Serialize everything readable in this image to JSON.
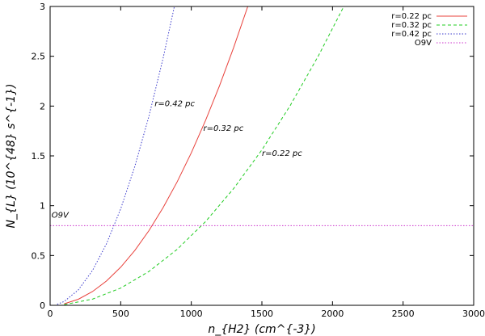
{
  "chart_data": {
    "type": "line",
    "xlabel": "n_{H2} (cm^{-3})",
    "ylabel": "N_{L} (10^{48} s^{-1})",
    "xlim": [
      0,
      3000
    ],
    "ylim": [
      0,
      3
    ],
    "x_ticks": [
      0,
      500,
      1000,
      1500,
      2000,
      2500,
      3000
    ],
    "y_ticks": [
      0,
      0.5,
      1,
      1.5,
      2,
      2.5,
      3
    ],
    "x_tick_labels": [
      "0",
      "500",
      "1000",
      "1500",
      "2000",
      "2500",
      "3000"
    ],
    "y_tick_labels": [
      "0",
      "0.5",
      "1",
      "1.5",
      "2",
      "2.5",
      "3"
    ],
    "grid": false,
    "legend_position": "top-right",
    "series": [
      {
        "name": "r=0.22 pc",
        "color": "#e8413b",
        "dash": "solid",
        "x": [
          100,
          200,
          300,
          400,
          500,
          600,
          700,
          800,
          900,
          1000,
          1100,
          1200,
          1300,
          1400
        ],
        "y": [
          0.015,
          0.061,
          0.138,
          0.245,
          0.383,
          0.551,
          0.75,
          0.98,
          1.24,
          1.531,
          1.853,
          2.205,
          2.588,
          3.0
        ]
      },
      {
        "name": "r=0.32 pc",
        "color": "#22cc22",
        "dash": "dashed",
        "x": [
          100,
          300,
          500,
          700,
          900,
          1100,
          1300,
          1500,
          1700,
          1900,
          2080
        ],
        "y": [
          0.007,
          0.062,
          0.173,
          0.34,
          0.562,
          0.839,
          1.172,
          1.56,
          2.004,
          2.504,
          3.0
        ]
      },
      {
        "name": "r=0.42 pc",
        "color": "#3a3acc",
        "dash": "dotted",
        "x": [
          50,
          100,
          200,
          300,
          400,
          500,
          600,
          700,
          800,
          880
        ],
        "y": [
          0.01,
          0.039,
          0.155,
          0.349,
          0.62,
          0.969,
          1.395,
          1.899,
          2.479,
          3.0
        ]
      },
      {
        "name": "O9V",
        "color": "#cc33cc",
        "dash": "dotted",
        "x": [
          0,
          3000
        ],
        "y": [
          0.8,
          0.8
        ]
      }
    ],
    "annotations": [
      {
        "text": "r=0.42 pc",
        "x": 740,
        "y": 2.0
      },
      {
        "text": "r=0.32 pc",
        "x": 1085,
        "y": 1.75
      },
      {
        "text": "r=0.22 pc",
        "x": 1500,
        "y": 1.5
      },
      {
        "text": "O9V",
        "x": 10,
        "y": 0.88
      }
    ]
  }
}
